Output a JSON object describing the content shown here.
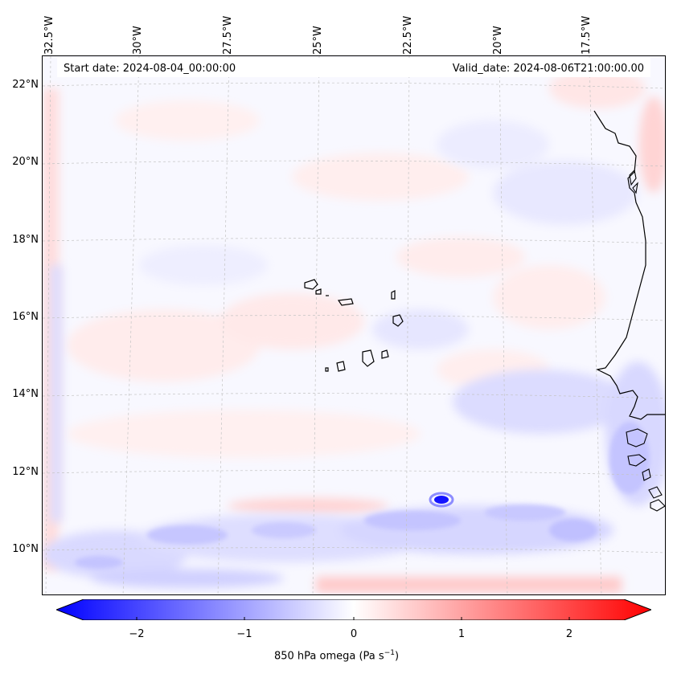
{
  "map": {
    "start_date": "Start date: 2024-08-04_00:00:00",
    "valid_date": "Valid_date: 2024-08-06T21:00:00.00",
    "longitude_labels": [
      "32.5°W",
      "30°W",
      "27.5°W",
      "25°W",
      "22.5°W",
      "20°W",
      "17.5°W"
    ],
    "latitude_labels": [
      "22°N",
      "20°N",
      "18°N",
      "16°N",
      "14°N",
      "12°N",
      "10°N"
    ],
    "variable": "850 hPa omega",
    "units": "Pa s",
    "unit_exponent": "−1"
  },
  "colorbar": {
    "ticks": [
      "−2",
      "−1",
      "0",
      "1",
      "2"
    ],
    "range": [
      -2.7,
      2.7
    ],
    "colors": {
      "min": "#0000ff",
      "mid": "#ffffff",
      "max": "#ff0000"
    }
  },
  "colors": {
    "coastline": "#000000",
    "gridline": "#b8b8b8",
    "ocean_base": "#f7f7ff",
    "weak_positive": "#ffeaea",
    "weak_negative": "#e4e4ff",
    "moderate_negative": "#c8c8ff",
    "moderate_positive": "#ffcccc",
    "strong_negative": "#1010ff"
  }
}
